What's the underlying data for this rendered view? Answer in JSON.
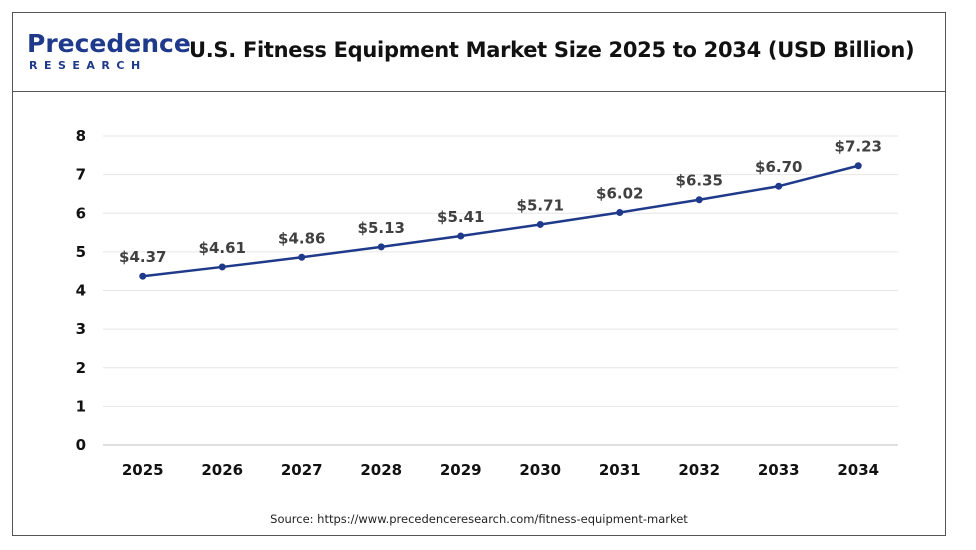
{
  "header": {
    "logo_top": "Precedence",
    "logo_bottom": "RESEARCH",
    "title": "U.S. Fitness Equipment Market Size 2025 to 2034 (USD Billion)"
  },
  "source": "Source: https://www.precedenceresearch.com/fitness-equipment-market",
  "colors": {
    "line": "#1f3a8a",
    "brand": "#1f3a8a",
    "grid": "#e6e6e6"
  },
  "chart_data": {
    "type": "line",
    "categories": [
      "2025",
      "2026",
      "2027",
      "2028",
      "2029",
      "2030",
      "2031",
      "2032",
      "2033",
      "2034"
    ],
    "series": [
      {
        "values": [
          4.37,
          4.61,
          4.86,
          5.13,
          5.41,
          5.71,
          6.02,
          6.35,
          6.7,
          7.23
        ],
        "labels": [
          "$4.37",
          "$4.61",
          "$4.86",
          "$5.13",
          "$5.41",
          "$5.71",
          "$6.02",
          "$6.35",
          "$6.70",
          "$7.23"
        ]
      }
    ],
    "ylim": [
      0,
      8
    ],
    "yticks": [
      "0",
      "1",
      "2",
      "3",
      "4",
      "5",
      "6",
      "7",
      "8"
    ],
    "grid": true,
    "legend": "none"
  }
}
